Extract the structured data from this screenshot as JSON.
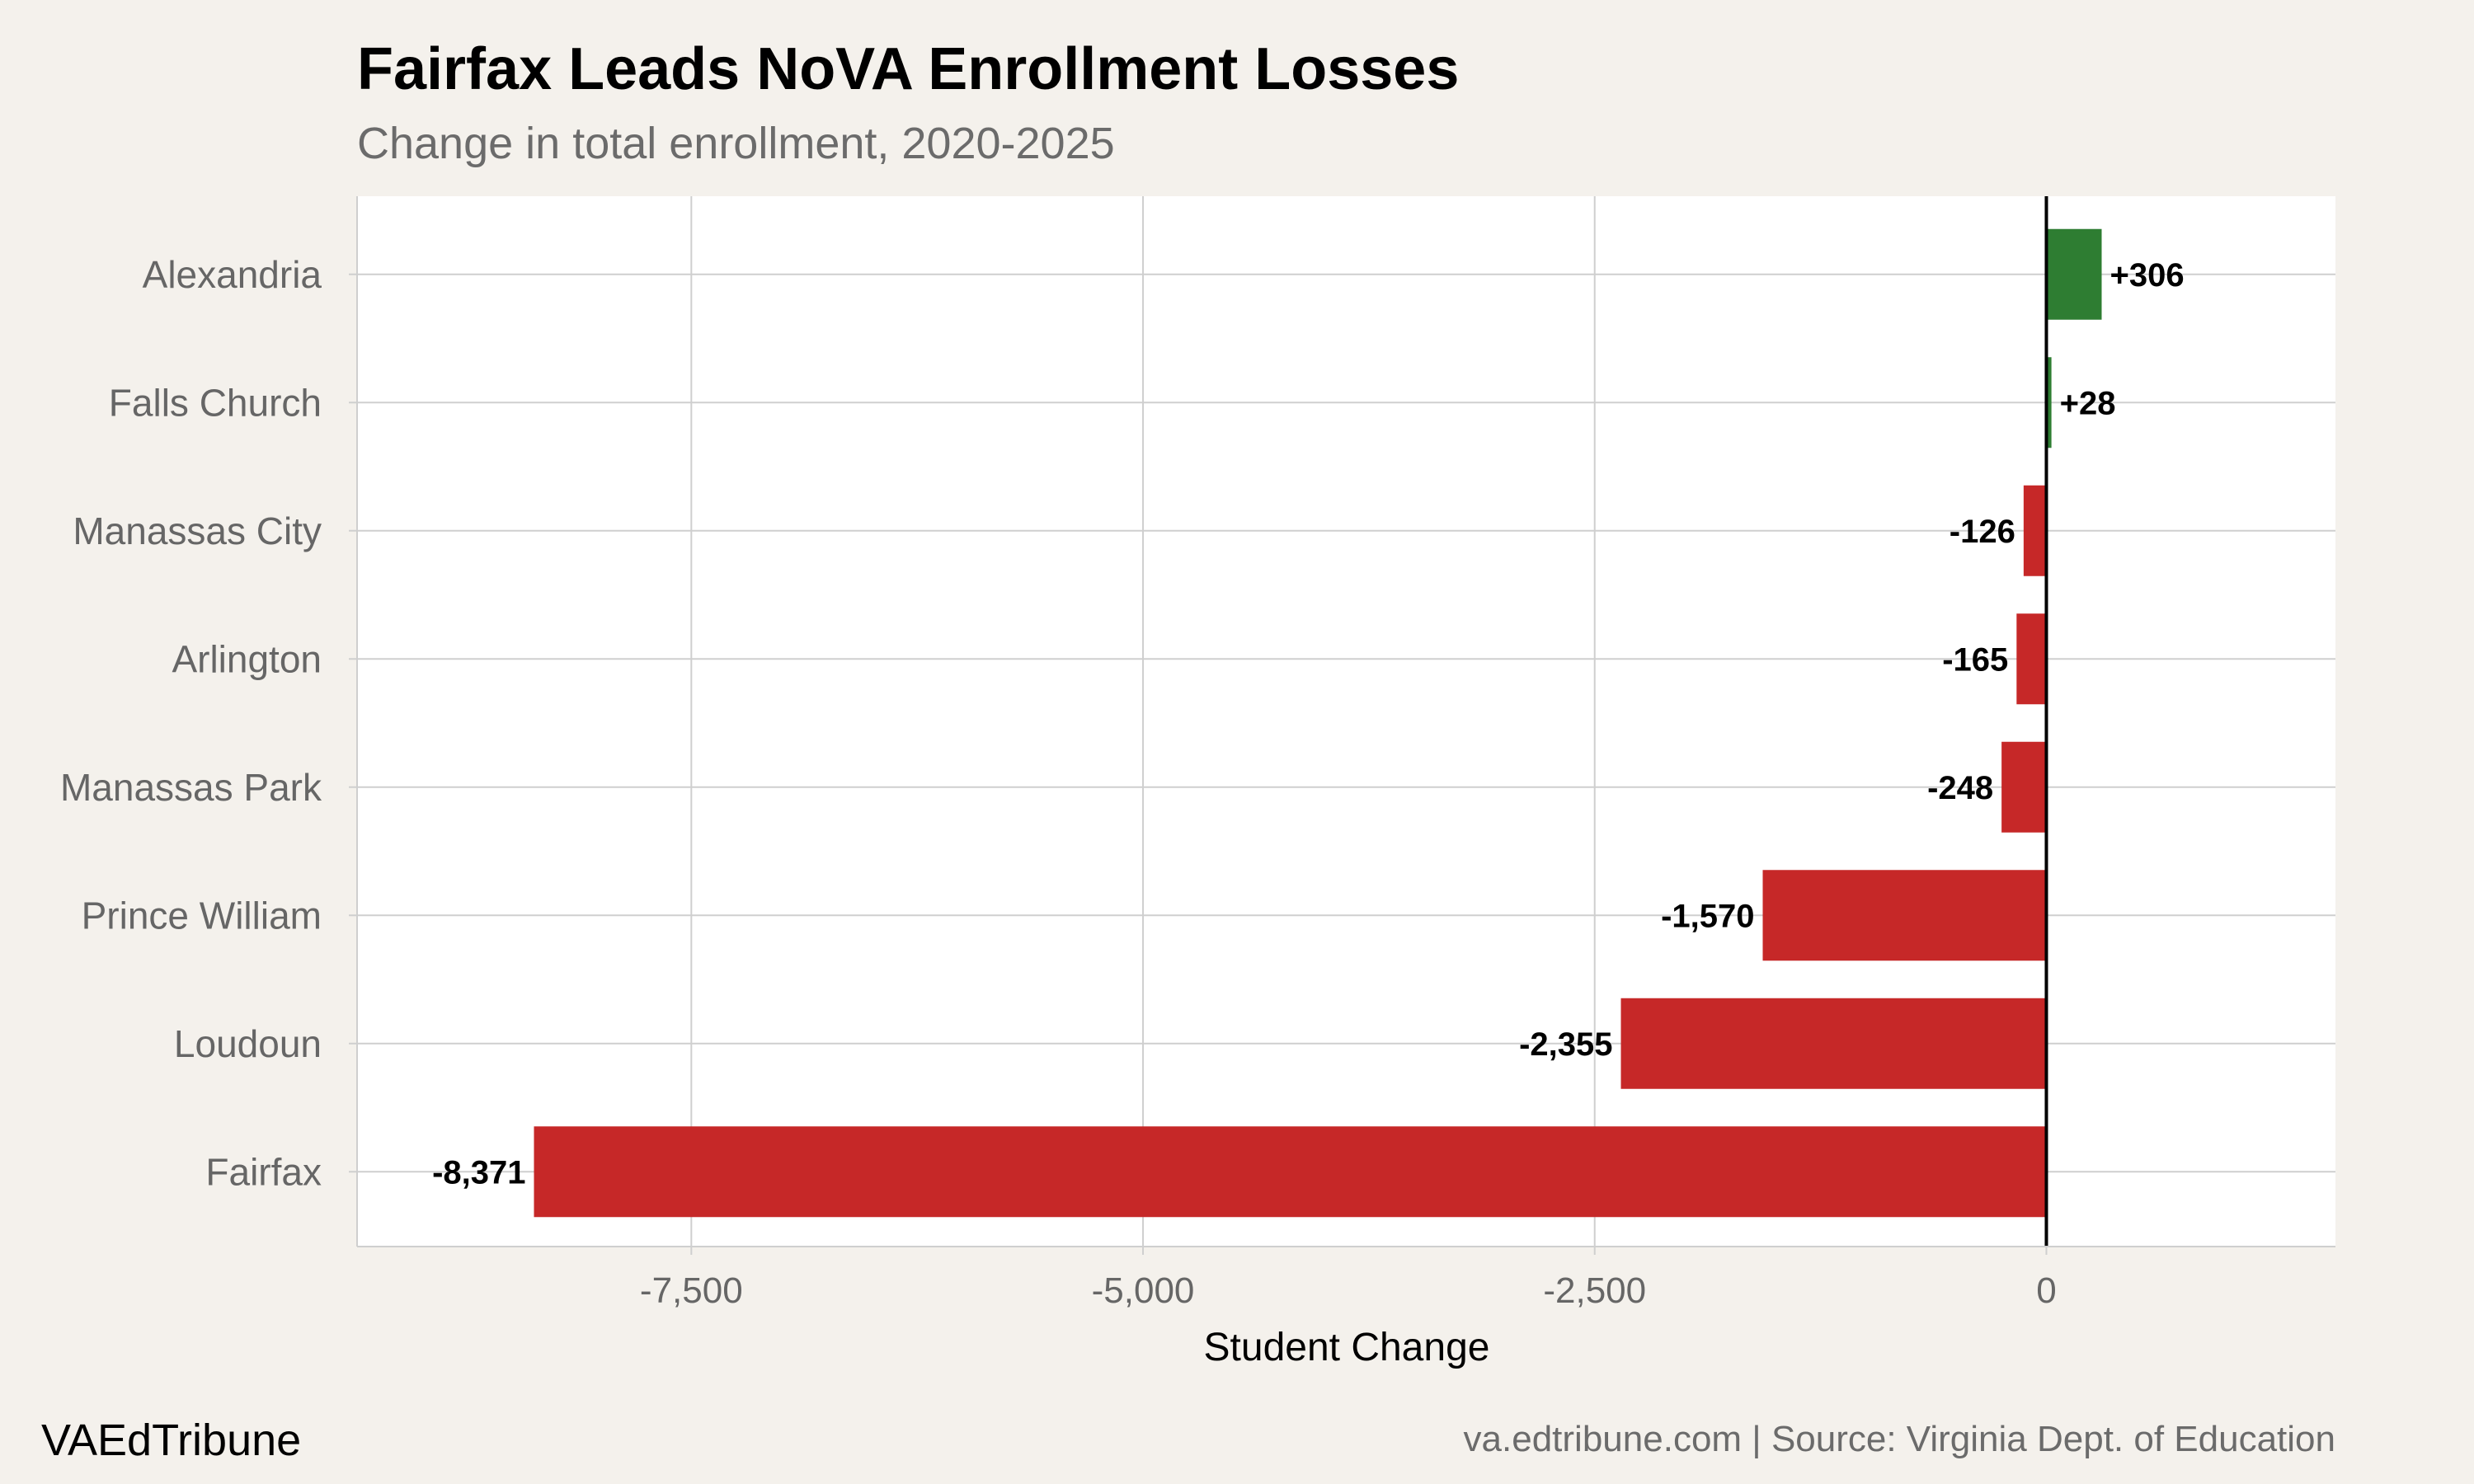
{
  "header": {
    "title": "Fairfax Leads NoVA Enrollment Losses",
    "subtitle": "Change in total enrollment, 2020-2025"
  },
  "footer": {
    "brand": "VAEdTribune",
    "source": "va.edtribune.com | Source: Virginia Dept. of Education"
  },
  "colors": {
    "background": "#f4f1ec",
    "panel": "#ffffff",
    "gridline": "#cfcfcf",
    "positive": "#2e7d32",
    "negative": "#c62828",
    "zero_line": "#000000"
  },
  "chart_data": {
    "type": "bar",
    "orientation": "horizontal",
    "title": "Fairfax Leads NoVA Enrollment Losses",
    "subtitle": "Change in total enrollment, 2020-2025",
    "xlabel": "Student Change",
    "ylabel": "",
    "categories": [
      "Alexandria",
      "Falls Church",
      "Manassas City",
      "Arlington",
      "Manassas Park",
      "Prince William",
      "Loudoun",
      "Fairfax"
    ],
    "values": [
      306,
      28,
      -126,
      -165,
      -248,
      -1570,
      -2355,
      -8371
    ],
    "data_labels": [
      "+306",
      "+28",
      "-126",
      "-165",
      "-248",
      "-1,570",
      "-2,355",
      "-8,371"
    ],
    "xlim": [
      -9350,
      1600
    ],
    "x_ticks": [
      -7500,
      -5000,
      -2500,
      0
    ],
    "x_tick_labels": [
      "-7,500",
      "-5,000",
      "-2,500",
      "0"
    ],
    "grid": true,
    "legend": "none"
  }
}
